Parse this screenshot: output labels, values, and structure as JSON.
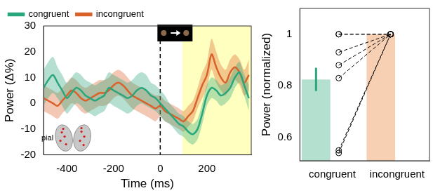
{
  "chart_data": [
    {
      "type": "line",
      "x_label": "Time (ms)",
      "y_label": "Power (Δ%)",
      "x": [
        -500,
        -480,
        -460,
        -440,
        -420,
        -400,
        -380,
        -360,
        -340,
        -320,
        -300,
        -280,
        -260,
        -240,
        -220,
        -200,
        -180,
        -160,
        -140,
        -120,
        -100,
        -80,
        -60,
        -40,
        -20,
        0,
        20,
        40,
        60,
        80,
        100,
        120,
        140,
        160,
        180,
        200,
        220,
        240,
        260,
        280,
        300,
        320,
        340,
        360,
        380
      ],
      "series": [
        {
          "name": "congruent",
          "color": "#2aa67c",
          "values": [
            6,
            9,
            11,
            8,
            5,
            2,
            4,
            6,
            5,
            3,
            2,
            1,
            2,
            3,
            6,
            5,
            4,
            3,
            2,
            3,
            5,
            6,
            5,
            3,
            2,
            0,
            -2,
            -4,
            -6,
            -8,
            -9,
            -11,
            -12,
            -10,
            -4,
            3,
            6,
            5,
            3,
            4,
            6,
            10,
            12,
            7,
            2
          ],
          "error": [
            7,
            7,
            7,
            6,
            6,
            6,
            6,
            6,
            6,
            6,
            6,
            6,
            6,
            6,
            6,
            6,
            6,
            6,
            6,
            6,
            6,
            6,
            6,
            5,
            5,
            5,
            5,
            4,
            4,
            4,
            4,
            4,
            4,
            4,
            4,
            4,
            4,
            4,
            4,
            4,
            4,
            4,
            4,
            4,
            5
          ]
        },
        {
          "name": "incongruent",
          "color": "#d9622b",
          "values": [
            2,
            1,
            0,
            -1,
            1,
            3,
            5,
            4,
            2,
            1,
            2,
            3,
            4,
            4,
            5,
            7,
            8,
            7,
            5,
            3,
            2,
            1,
            0,
            -1,
            -2,
            -1,
            -3,
            -4,
            -5,
            -6,
            -7,
            -5,
            -3,
            2,
            7,
            11,
            19,
            14,
            10,
            8,
            12,
            14,
            12,
            8,
            11
          ],
          "error": [
            5,
            5,
            5,
            5,
            5,
            5,
            5,
            5,
            5,
            5,
            5,
            5,
            5,
            5,
            5,
            5,
            5,
            5,
            5,
            5,
            5,
            5,
            5,
            5,
            5,
            4,
            4,
            4,
            4,
            4,
            4,
            4,
            4,
            4,
            5,
            5,
            6,
            6,
            5,
            5,
            5,
            5,
            5,
            5,
            6
          ]
        }
      ],
      "xlim": [
        -500,
        390
      ],
      "xticks": [
        -400,
        -200,
        0,
        200
      ],
      "ylim": [
        -20,
        30
      ],
      "yticks": [
        -20,
        -10,
        0,
        10,
        20,
        30
      ],
      "shaded_region": [
        95,
        390
      ],
      "vline": 0,
      "annotation": "pial",
      "legend": "upper left",
      "grid": false
    },
    {
      "type": "bar",
      "y_label": "Power (normalized)",
      "categories": [
        "congruent",
        "incongruent"
      ],
      "values": [
        0.825,
        1.0
      ],
      "errors": [
        0.045,
        0
      ],
      "colors": [
        "#b4e0cf",
        "#f7cfb3"
      ],
      "paired_values": [
        [
          1.0,
          1.0
        ],
        [
          1.0,
          1.0
        ],
        [
          0.93,
          1.0
        ],
        [
          0.88,
          1.0
        ],
        [
          0.83,
          1.0
        ],
        [
          0.55,
          1.0
        ],
        [
          0.54,
          1.0
        ]
      ],
      "ylim": [
        0.51,
        1.1
      ],
      "yticks": [
        0.6,
        0.8,
        1
      ],
      "grid": false
    }
  ]
}
